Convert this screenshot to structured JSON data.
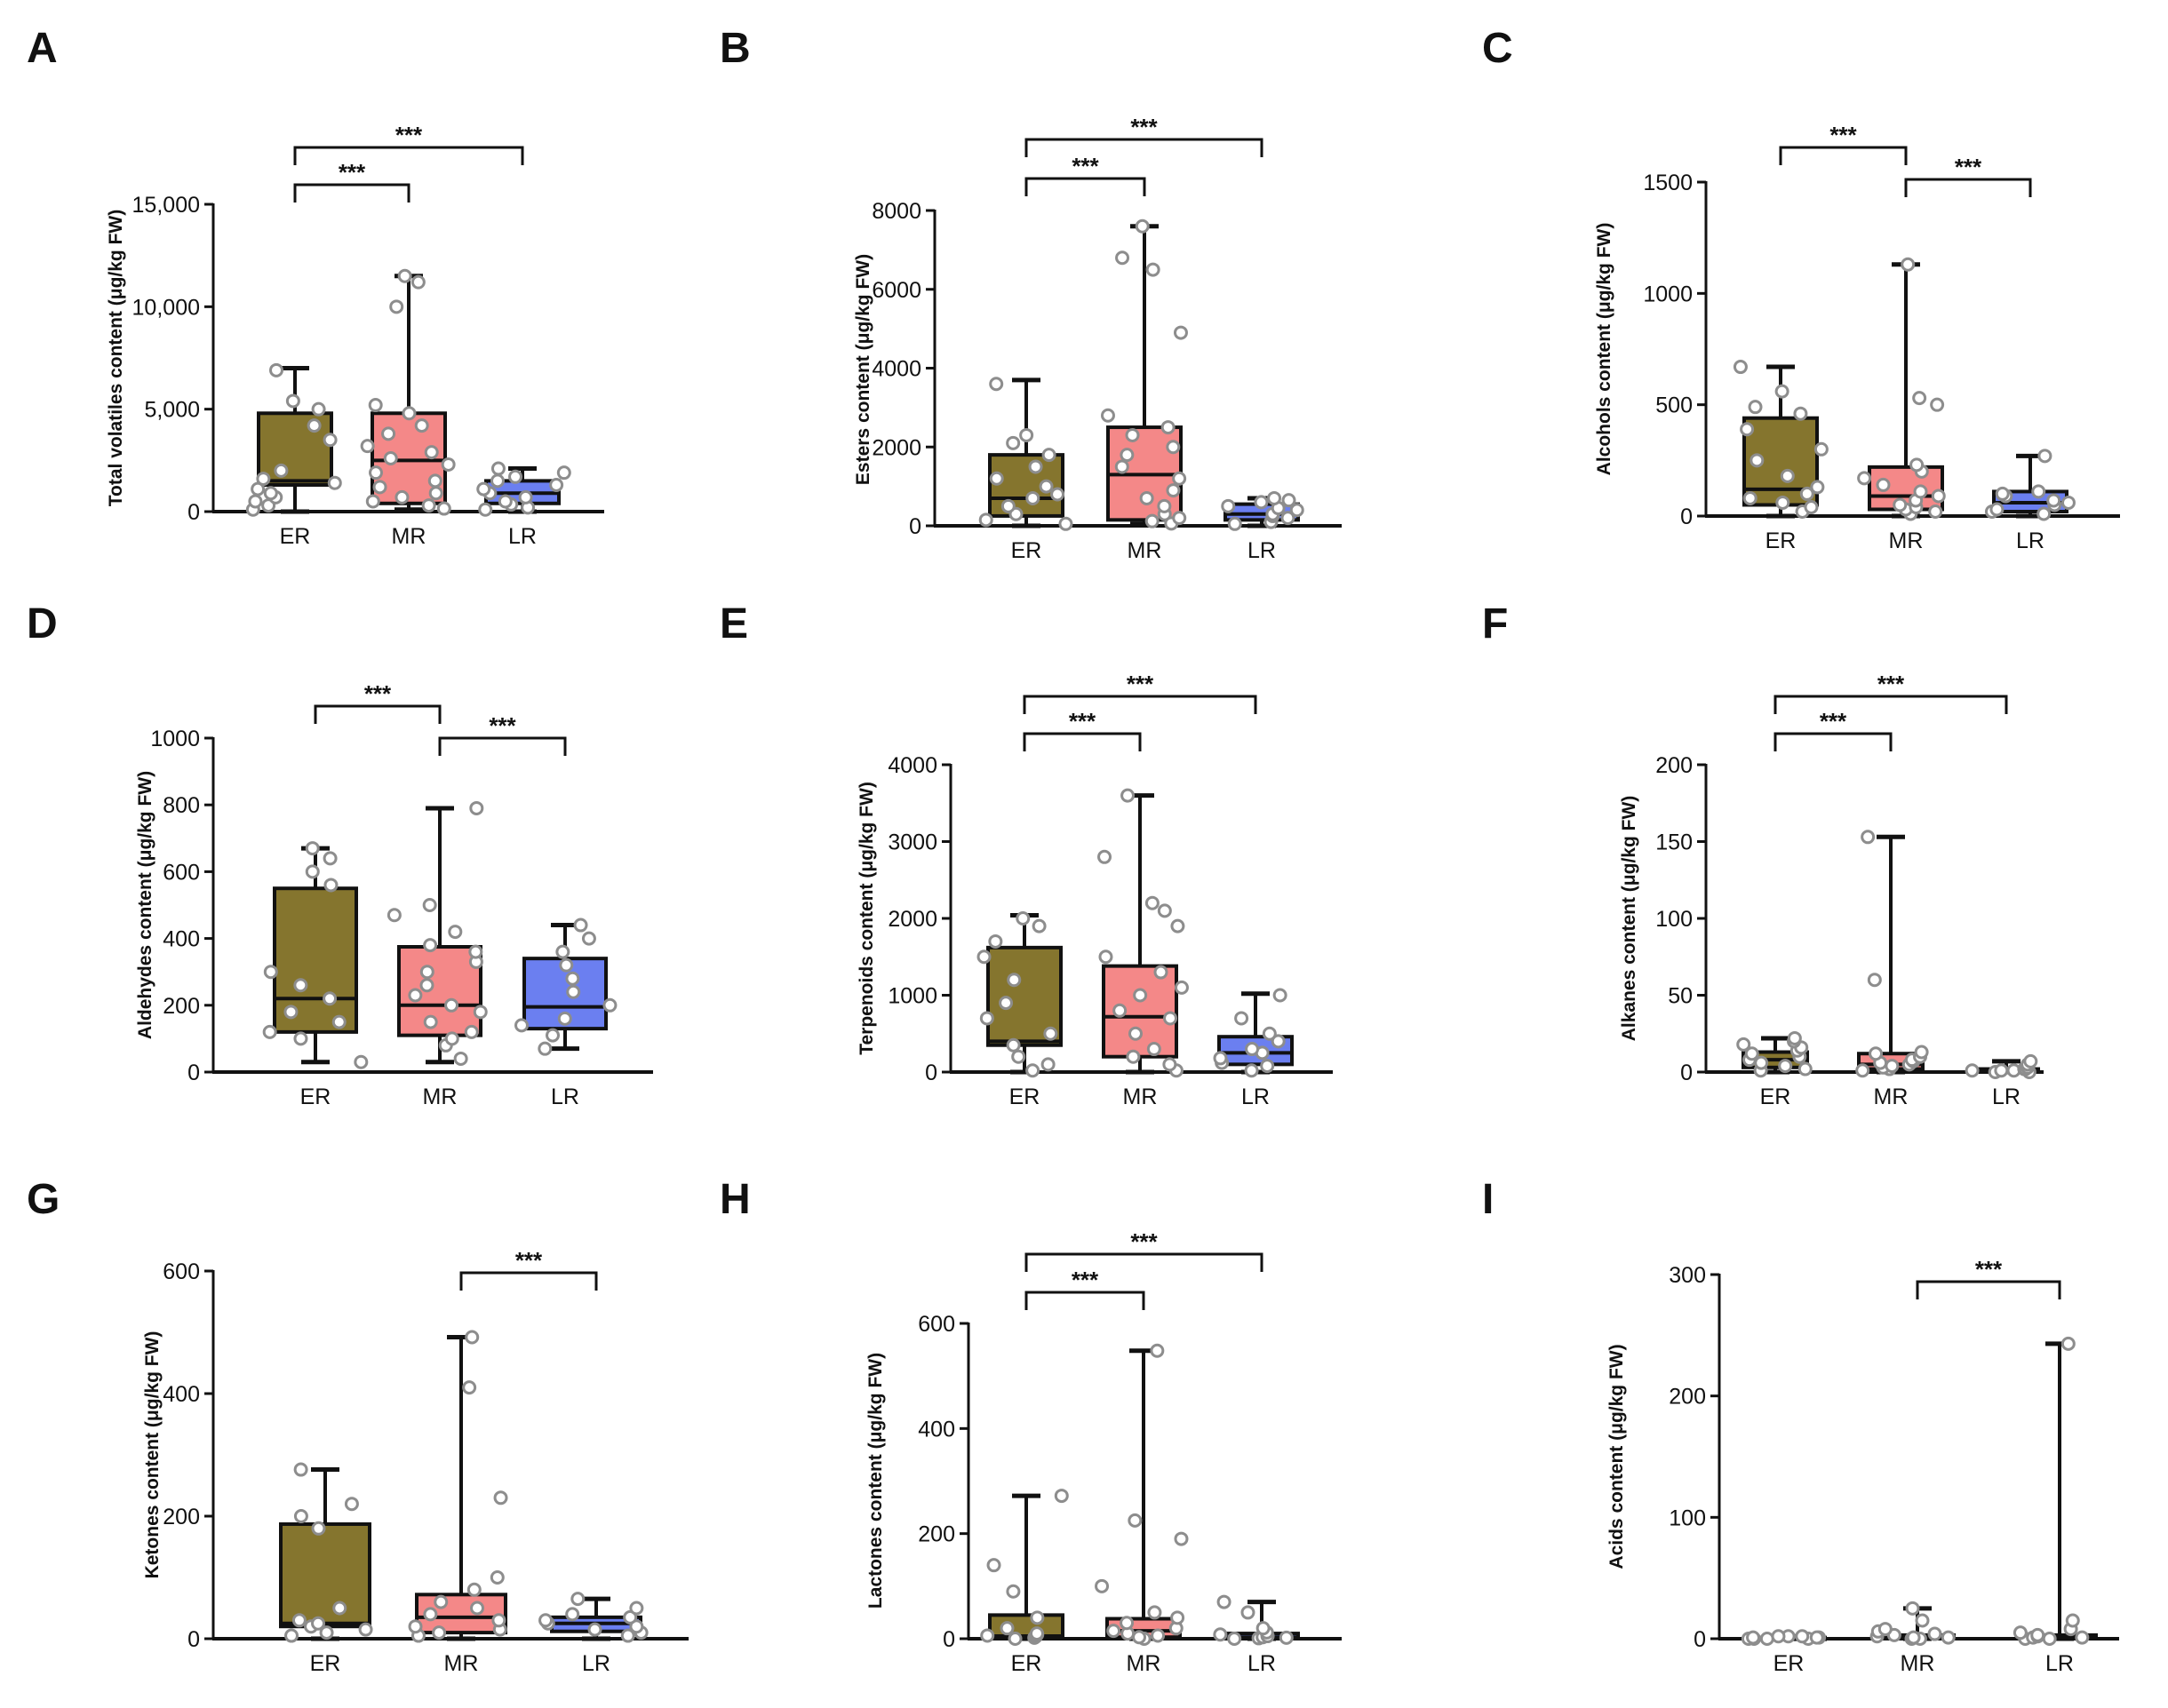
{
  "figure": {
    "series_colors": {
      "ER": "#85752e",
      "MR": "#f48888",
      "LR": "#6b7ff0"
    }
  },
  "chart_data": [
    {
      "panel": "A",
      "type": "box",
      "ylabel": "Total volatiles content (μg/kg FW)",
      "categories": [
        "ER",
        "MR",
        "LR"
      ],
      "ylim": [
        0,
        15000
      ],
      "yticks": [
        0,
        5000,
        10000,
        15000
      ],
      "ytick_labels": [
        "0",
        "5,000",
        "10,000",
        "15,000"
      ],
      "boxes": [
        {
          "min": 0,
          "q1": 1300,
          "median": 1500,
          "q3": 4800,
          "max": 7000,
          "points": [
            100,
            300,
            500,
            700,
            900,
            1100,
            1400,
            1600,
            2000,
            3500,
            4200,
            5000,
            5400,
            6900
          ]
        },
        {
          "min": 100,
          "q1": 400,
          "median": 2500,
          "q3": 4800,
          "max": 11500,
          "points": [
            150,
            300,
            500,
            700,
            900,
            1200,
            1500,
            1900,
            2300,
            2600,
            2900,
            3200,
            3800,
            4200,
            4800,
            5200,
            10000,
            11200,
            11500
          ]
        },
        {
          "min": 0,
          "q1": 400,
          "median": 900,
          "q3": 1500,
          "max": 2100,
          "points": [
            100,
            200,
            350,
            500,
            700,
            900,
            1100,
            1300,
            1500,
            1700,
            1900,
            2100
          ]
        }
      ],
      "significance": [
        {
          "from": 0,
          "to": 1,
          "label": "***"
        },
        {
          "from": 0,
          "to": 2,
          "label": "***"
        }
      ]
    },
    {
      "panel": "B",
      "type": "box",
      "ylabel": "Esters content (μg/kg FW)",
      "categories": [
        "ER",
        "MR",
        "LR"
      ],
      "ylim": [
        0,
        8000
      ],
      "yticks": [
        0,
        2000,
        4000,
        6000,
        8000
      ],
      "ytick_labels": [
        "0",
        "2000",
        "4000",
        "6000",
        "8000"
      ],
      "boxes": [
        {
          "min": 0,
          "q1": 250,
          "median": 700,
          "q3": 1800,
          "max": 3700,
          "points": [
            50,
            150,
            300,
            500,
            700,
            800,
            1000,
            1200,
            1500,
            1800,
            2100,
            2300,
            3600
          ]
        },
        {
          "min": 50,
          "q1": 150,
          "median": 1300,
          "q3": 2500,
          "max": 7600,
          "points": [
            60,
            120,
            200,
            300,
            500,
            700,
            900,
            1200,
            1500,
            1800,
            2000,
            2300,
            2500,
            2800,
            4900,
            6500,
            6800,
            7600
          ]
        },
        {
          "min": 0,
          "q1": 150,
          "median": 300,
          "q3": 550,
          "max": 700,
          "points": [
            50,
            100,
            200,
            250,
            300,
            400,
            450,
            500,
            600,
            650,
            700
          ]
        }
      ],
      "significance": [
        {
          "from": 0,
          "to": 1,
          "label": "***"
        },
        {
          "from": 0,
          "to": 2,
          "label": "***"
        }
      ]
    },
    {
      "panel": "C",
      "type": "box",
      "ylabel": "Alcohols content (μg/kg FW)",
      "categories": [
        "ER",
        "MR",
        "LR"
      ],
      "ylim": [
        0,
        1500
      ],
      "yticks": [
        0,
        500,
        1000,
        1500
      ],
      "ytick_labels": [
        "0",
        "500",
        "1000",
        "1500"
      ],
      "boxes": [
        {
          "min": 0,
          "q1": 50,
          "median": 120,
          "q3": 440,
          "max": 670,
          "points": [
            20,
            40,
            60,
            80,
            100,
            130,
            180,
            250,
            300,
            390,
            460,
            490,
            560,
            670
          ]
        },
        {
          "min": 0,
          "q1": 30,
          "median": 90,
          "q3": 220,
          "max": 1130,
          "points": [
            10,
            20,
            30,
            40,
            50,
            70,
            90,
            110,
            140,
            170,
            200,
            230,
            500,
            530,
            1130
          ]
        },
        {
          "min": 0,
          "q1": 20,
          "median": 60,
          "q3": 110,
          "max": 270,
          "points": [
            10,
            20,
            30,
            50,
            60,
            70,
            90,
            100,
            110,
            270
          ]
        }
      ],
      "significance": [
        {
          "from": 0,
          "to": 1,
          "label": "***"
        },
        {
          "from": 1,
          "to": 2,
          "label": "***"
        }
      ]
    },
    {
      "panel": "D",
      "type": "box",
      "ylabel": "Aldehydes content (μg/kg FW)",
      "categories": [
        "ER",
        "MR",
        "LR"
      ],
      "ylim": [
        0,
        1000
      ],
      "yticks": [
        0,
        200,
        400,
        600,
        800,
        1000
      ],
      "ytick_labels": [
        "0",
        "200",
        "400",
        "600",
        "800",
        "1000"
      ],
      "boxes": [
        {
          "min": 30,
          "q1": 120,
          "median": 220,
          "q3": 550,
          "max": 670,
          "points": [
            30,
            100,
            120,
            150,
            180,
            220,
            260,
            300,
            560,
            600,
            640,
            670
          ]
        },
        {
          "min": 30,
          "q1": 110,
          "median": 200,
          "q3": 375,
          "max": 790,
          "points": [
            40,
            80,
            100,
            120,
            150,
            180,
            200,
            230,
            260,
            300,
            330,
            360,
            380,
            420,
            470,
            500,
            790
          ]
        },
        {
          "min": 70,
          "q1": 130,
          "median": 195,
          "q3": 340,
          "max": 440,
          "points": [
            70,
            110,
            140,
            160,
            200,
            240,
            280,
            320,
            360,
            400,
            440
          ]
        }
      ],
      "significance": [
        {
          "from": 0,
          "to": 1,
          "label": "***"
        },
        {
          "from": 1,
          "to": 2,
          "label": "***"
        }
      ]
    },
    {
      "panel": "E",
      "type": "box",
      "ylabel": "Terpenoids content (μg/kg FW)",
      "categories": [
        "ER",
        "MR",
        "LR"
      ],
      "ylim": [
        0,
        4000
      ],
      "yticks": [
        0,
        1000,
        2000,
        3000,
        4000
      ],
      "ytick_labels": [
        "0",
        "1000",
        "2000",
        "3000",
        "4000"
      ],
      "boxes": [
        {
          "min": 0,
          "q1": 350,
          "median": 400,
          "q3": 1620,
          "max": 2040,
          "points": [
            20,
            100,
            200,
            350,
            500,
            700,
            900,
            1200,
            1500,
            1700,
            1900,
            2000
          ]
        },
        {
          "min": 0,
          "q1": 200,
          "median": 720,
          "q3": 1380,
          "max": 3600,
          "points": [
            20,
            100,
            200,
            300,
            500,
            700,
            800,
            1000,
            1100,
            1300,
            1500,
            1900,
            2100,
            2200,
            2800,
            3600
          ]
        },
        {
          "min": 0,
          "q1": 100,
          "median": 250,
          "q3": 460,
          "max": 1020,
          "points": [
            20,
            80,
            120,
            180,
            250,
            300,
            400,
            500,
            700,
            1000
          ]
        }
      ],
      "significance": [
        {
          "from": 0,
          "to": 1,
          "label": "***"
        },
        {
          "from": 0,
          "to": 2,
          "label": "***"
        }
      ]
    },
    {
      "panel": "F",
      "type": "box",
      "ylabel": "Alkanes content (μg/kg FW)",
      "categories": [
        "ER",
        "MR",
        "LR"
      ],
      "ylim": [
        0,
        200
      ],
      "yticks": [
        0,
        50,
        100,
        150,
        200
      ],
      "ytick_labels": [
        "0",
        "50",
        "100",
        "150",
        "200"
      ],
      "boxes": [
        {
          "min": 0,
          "q1": 3,
          "median": 8,
          "q3": 13,
          "max": 22,
          "points": [
            1,
            2,
            4,
            6,
            8,
            10,
            12,
            14,
            16,
            18,
            20,
            22
          ]
        },
        {
          "min": 0,
          "q1": 2,
          "median": 5,
          "q3": 12,
          "max": 153,
          "points": [
            1,
            2,
            3,
            4,
            5,
            6,
            7,
            8,
            10,
            12,
            13,
            60,
            153
          ]
        },
        {
          "min": 0,
          "q1": 0,
          "median": 1,
          "q3": 2,
          "max": 7,
          "points": [
            0,
            0,
            1,
            1,
            1,
            2,
            2,
            3,
            5,
            7
          ]
        }
      ],
      "significance": [
        {
          "from": 0,
          "to": 1,
          "label": "***"
        },
        {
          "from": 0,
          "to": 2,
          "label": "***"
        }
      ]
    },
    {
      "panel": "G",
      "type": "box",
      "ylabel": "Ketones content (μg/kg FW)",
      "categories": [
        "ER",
        "MR",
        "LR"
      ],
      "ylim": [
        0,
        600
      ],
      "yticks": [
        0,
        200,
        400,
        600
      ],
      "ytick_labels": [
        "0",
        "200",
        "400",
        "600"
      ],
      "boxes": [
        {
          "min": 0,
          "q1": 20,
          "median": 25,
          "q3": 187,
          "max": 276,
          "points": [
            5,
            10,
            15,
            20,
            25,
            30,
            50,
            180,
            200,
            220,
            276
          ]
        },
        {
          "min": 0,
          "q1": 10,
          "median": 35,
          "q3": 72,
          "max": 492,
          "points": [
            5,
            10,
            15,
            20,
            30,
            40,
            50,
            60,
            80,
            100,
            230,
            410,
            492
          ]
        },
        {
          "min": 0,
          "q1": 12,
          "median": 25,
          "q3": 35,
          "max": 65,
          "points": [
            5,
            10,
            15,
            20,
            25,
            30,
            35,
            40,
            50,
            65
          ]
        }
      ],
      "significance": [
        {
          "from": 1,
          "to": 2,
          "label": "***"
        }
      ]
    },
    {
      "panel": "H",
      "type": "box",
      "ylabel": "Lactones content (μg/kg FW)",
      "categories": [
        "ER",
        "MR",
        "LR"
      ],
      "ylim": [
        0,
        600
      ],
      "yticks": [
        0,
        200,
        400,
        600
      ],
      "ytick_labels": [
        "0",
        "200",
        "400",
        "600"
      ],
      "boxes": [
        {
          "min": 0,
          "q1": 2,
          "median": 5,
          "q3": 45,
          "max": 272,
          "points": [
            0,
            2,
            4,
            6,
            8,
            10,
            20,
            40,
            90,
            140,
            272
          ]
        },
        {
          "min": 0,
          "q1": 3,
          "median": 15,
          "q3": 38,
          "max": 548,
          "points": [
            0,
            3,
            6,
            10,
            15,
            20,
            30,
            40,
            50,
            100,
            190,
            225,
            548
          ]
        },
        {
          "min": 0,
          "q1": 1,
          "median": 3,
          "q3": 10,
          "max": 70,
          "points": [
            0,
            1,
            2,
            3,
            5,
            8,
            12,
            20,
            50,
            70
          ]
        }
      ],
      "significance": [
        {
          "from": 0,
          "to": 1,
          "label": "***"
        },
        {
          "from": 0,
          "to": 2,
          "label": "***"
        }
      ]
    },
    {
      "panel": "I",
      "type": "box",
      "ylabel": "Acids content (μg/kg FW)",
      "categories": [
        "ER",
        "MR",
        "LR"
      ],
      "ylim": [
        0,
        300
      ],
      "yticks": [
        0,
        100,
        200,
        300
      ],
      "ytick_labels": [
        "0",
        "100",
        "200",
        "300"
      ],
      "boxes": [
        {
          "min": 0,
          "q1": 0,
          "median": 0,
          "q3": 1,
          "max": 2,
          "points": [
            0,
            0,
            0,
            0,
            1,
            1,
            1,
            2,
            2,
            2
          ]
        },
        {
          "min": 0,
          "q1": 0,
          "median": 1,
          "q3": 3,
          "max": 25,
          "points": [
            0,
            0,
            1,
            1,
            2,
            3,
            4,
            6,
            8,
            15,
            25
          ]
        },
        {
          "min": 0,
          "q1": 0,
          "median": 1,
          "q3": 3,
          "max": 243,
          "points": [
            0,
            0,
            1,
            1,
            2,
            3,
            5,
            8,
            15,
            243
          ]
        }
      ],
      "significance": [
        {
          "from": 1,
          "to": 2,
          "label": "***"
        }
      ]
    }
  ]
}
